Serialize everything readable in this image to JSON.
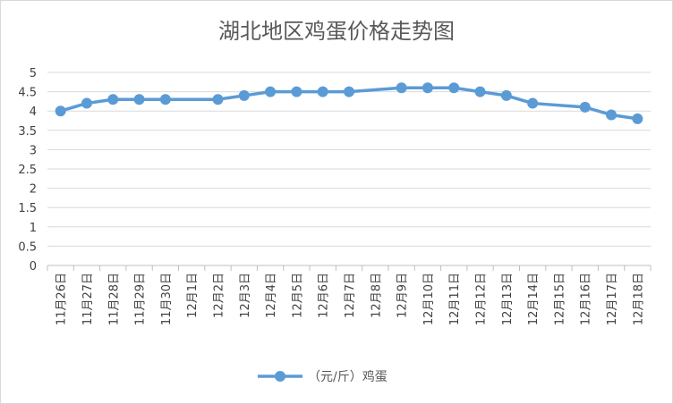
{
  "chart_data": {
    "type": "line",
    "title": "湖北地区鸡蛋价格走势图",
    "xlabel": "",
    "ylabel": "",
    "ylim": [
      0,
      5
    ],
    "yticks": [
      "0",
      "0.5",
      "1",
      "1.5",
      "2",
      "2.5",
      "3",
      "3.5",
      "4",
      "4.5",
      "5"
    ],
    "grid": true,
    "legend_position": "bottom",
    "categories": [
      "11月26日",
      "11月27日",
      "11月28日",
      "11月29日",
      "11月30日",
      "12月1日",
      "12月2日",
      "12月3日",
      "12月4日",
      "12月5日",
      "12月6日",
      "12月7日",
      "12月8日",
      "12月9日",
      "12月10日",
      "12月11日",
      "12月12日",
      "12月13日",
      "12月14日",
      "12月15日",
      "12月16日",
      "12月17日",
      "12月18日"
    ],
    "series": [
      {
        "name": "（元/斤）鸡蛋",
        "color": "#5b9bd5",
        "values": [
          4.0,
          4.2,
          4.3,
          4.3,
          4.3,
          null,
          4.3,
          4.4,
          4.5,
          4.5,
          4.5,
          4.5,
          null,
          4.6,
          4.6,
          4.6,
          4.5,
          4.4,
          4.2,
          null,
          4.1,
          3.9,
          3.8
        ]
      }
    ]
  }
}
